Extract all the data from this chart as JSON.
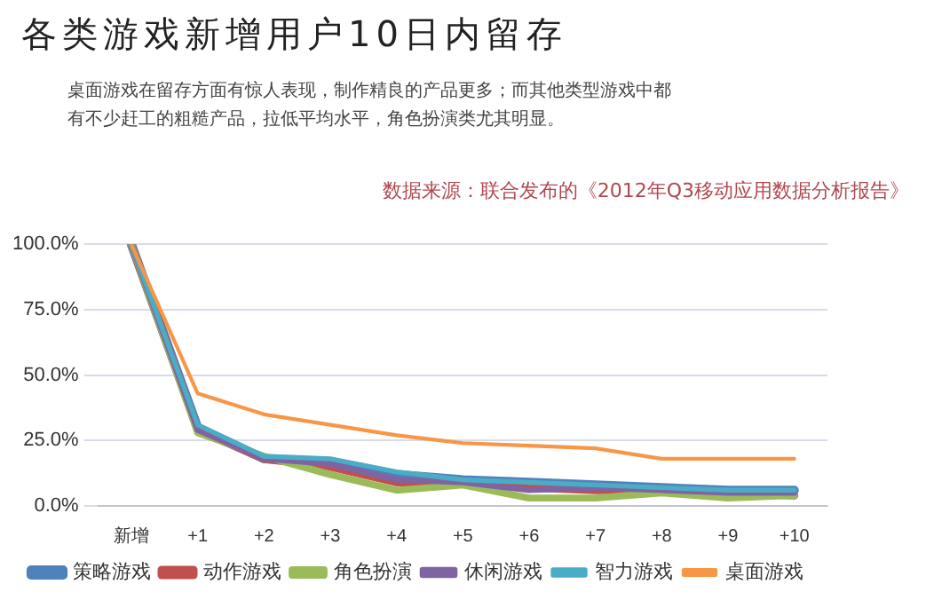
{
  "chart_data": {
    "type": "line",
    "title": "各类游戏新增用户10日内留存",
    "subtitle": "桌面游戏在留存方面有惊人表现，制作精良的产品更多；而其他类型游戏中都有不少赶工的粗糙产品，拉低平均水平，角色扮演类尤其明显。",
    "annotations": [
      "数据来源：联合发布的《2012年Q3移动应用数据分析报告》"
    ],
    "categories": [
      "新增",
      "+1",
      "+2",
      "+3",
      "+4",
      "+5",
      "+6",
      "+7",
      "+8",
      "+9",
      "+10"
    ],
    "series": [
      {
        "name": "策略游戏",
        "color": "#4f81bd",
        "values": [
          100,
          30,
          18,
          17,
          12,
          10,
          9,
          8,
          7,
          6,
          6
        ]
      },
      {
        "name": "动作游戏",
        "color": "#c0504d",
        "values": [
          100,
          29,
          18,
          15,
          9,
          9,
          7,
          6,
          6,
          5,
          4
        ]
      },
      {
        "name": "角色扮演",
        "color": "#9bbb59",
        "values": [
          100,
          28,
          19,
          12,
          6,
          8,
          3,
          3,
          5,
          3,
          4
        ]
      },
      {
        "name": "休闲游戏",
        "color": "#8064a2",
        "values": [
          100,
          29,
          18,
          16,
          10,
          9,
          6,
          7,
          6,
          5,
          5
        ]
      },
      {
        "name": "智力游戏",
        "color": "#4bacc6",
        "values": [
          100,
          31,
          19,
          18,
          13,
          10,
          9,
          8,
          7,
          6,
          6
        ]
      },
      {
        "name": "桌面游戏",
        "color": "#f79646",
        "values": [
          100,
          43,
          35,
          31,
          27,
          24,
          23,
          22,
          18,
          18,
          18
        ]
      }
    ],
    "ylim": [
      0,
      100
    ],
    "yticks": [
      {
        "value": 0,
        "label": "0.0%"
      },
      {
        "value": 25,
        "label": "25.0%"
      },
      {
        "value": 50,
        "label": "50.0%"
      },
      {
        "value": 75,
        "label": "75.0%"
      },
      {
        "value": 100,
        "label": "100.0%"
      }
    ],
    "grid": "y",
    "legend": "bottom",
    "marker": "none",
    "line_style": "solid"
  }
}
